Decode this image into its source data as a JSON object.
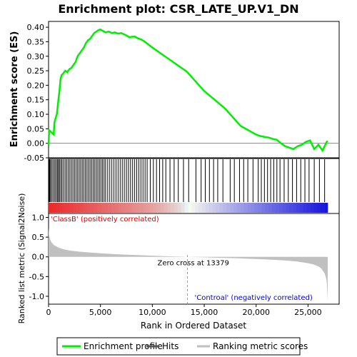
{
  "chart_data": {
    "type": "line",
    "title": "Enrichment plot: CSR_LATE_UP.V1_DN",
    "xlabel": "Rank in Ordered Dataset",
    "xlim": [
      0,
      28000
    ],
    "x_ticks": [
      0,
      5000,
      10000,
      15000,
      20000,
      25000
    ],
    "x_tick_labels": [
      "0",
      "5,000",
      "10,000",
      "15,000",
      "20,000",
      "25,000"
    ],
    "panels": {
      "enrichment": {
        "ylabel": "Enrichment score (ES)",
        "ylim": [
          -0.05,
          0.42
        ],
        "y_ticks": [
          -0.05,
          0.0,
          0.05,
          0.1,
          0.15,
          0.2,
          0.25,
          0.3,
          0.35,
          0.4
        ],
        "y_tick_labels": [
          "-0.05",
          "0.00",
          "0.05",
          "0.10",
          "0.15",
          "0.20",
          "0.25",
          "0.30",
          "0.35",
          "0.40"
        ],
        "series": [
          {
            "name": "Enrichment profile",
            "color": "#00ee00",
            "x": [
              0,
              60,
              500,
              560,
              700,
              800,
              950,
              1050,
              1150,
              1250,
              1400,
              1600,
              1800,
              2000,
              2200,
              2400,
              2600,
              2800,
              3000,
              3200,
              3400,
              3600,
              3800,
              4000,
              4200,
              4400,
              4600,
              4800,
              5000,
              5200,
              5500,
              5800,
              6100,
              6400,
              6700,
              7000,
              7300,
              7600,
              7800,
              8000,
              8300,
              8600,
              8900,
              9200,
              10000,
              11000,
              12000,
              13000,
              13379,
              14000,
              15000,
              16000,
              17000,
              17500,
              18000,
              18500,
              19000,
              19500,
              20000,
              20400,
              20800,
              21200,
              21600,
              22000,
              22400,
              22800,
              23200,
              23600,
              24000,
              24400,
              24800,
              25200,
              25600,
              26000,
              26400,
              26800,
              26900
            ],
            "values": [
              -0.005,
              0.045,
              0.03,
              0.07,
              0.09,
              0.1,
              0.15,
              0.18,
              0.22,
              0.235,
              0.24,
              0.25,
              0.245,
              0.255,
              0.26,
              0.27,
              0.28,
              0.3,
              0.31,
              0.32,
              0.33,
              0.345,
              0.355,
              0.36,
              0.37,
              0.38,
              0.385,
              0.39,
              0.392,
              0.388,
              0.382,
              0.385,
              0.38,
              0.382,
              0.378,
              0.38,
              0.375,
              0.37,
              0.365,
              0.367,
              0.368,
              0.362,
              0.358,
              0.352,
              0.33,
              0.305,
              0.28,
              0.255,
              0.245,
              0.22,
              0.18,
              0.15,
              0.12,
              0.1,
              0.08,
              0.06,
              0.05,
              0.04,
              0.03,
              0.025,
              0.022,
              0.02,
              0.015,
              0.012,
              0.0,
              -0.01,
              -0.015,
              -0.02,
              -0.01,
              -0.005,
              0.005,
              0.01,
              -0.02,
              -0.005,
              -0.025,
              0.005,
              0.008
            ]
          }
        ]
      },
      "hits": {
        "legend_label": "Hits",
        "color": "#000000",
        "ranks": [
          60,
          120,
          200,
          330,
          460,
          600,
          720,
          850,
          950,
          1050,
          1180,
          1300,
          1450,
          1600,
          1750,
          1900,
          2050,
          2200,
          2350,
          2500,
          2650,
          2800,
          2950,
          3100,
          3250,
          3400,
          3550,
          3700,
          3850,
          4000,
          4150,
          4300,
          4450,
          4600,
          4750,
          4900,
          5050,
          5200,
          5350,
          5500,
          5700,
          5900,
          6100,
          6300,
          6500,
          6700,
          6900,
          7100,
          7300,
          7500,
          7700,
          7900,
          8100,
          8300,
          8500,
          8700,
          8900,
          9100,
          9300,
          9500,
          9800,
          10100,
          10400,
          10700,
          11000,
          11300,
          11700,
          12100,
          12500,
          13000,
          13500,
          14200,
          14700,
          15100,
          15500,
          15900,
          16300,
          16800,
          17500,
          17900,
          18400,
          18800,
          19200,
          19700,
          20200,
          20500,
          20800,
          21100,
          21400,
          21700,
          22000,
          22300,
          22700,
          23100,
          23500,
          23900,
          24300,
          24700,
          25100,
          25600,
          26100,
          26600
        ]
      },
      "ranked_metric": {
        "ylabel": "Ranked list metric (Signal2Noise)",
        "ylim": [
          -1.2,
          1.1
        ],
        "y_ticks": [
          1.0,
          0.5,
          0.0,
          -0.5,
          -1.0
        ],
        "y_tick_labels": [
          "1.0",
          "0.5",
          "0.0",
          "-0.5",
          "-1.0"
        ],
        "legend_label": "Ranking metric scores",
        "fill_color": "#c0c0c0",
        "x": [
          0,
          50,
          200,
          500,
          1000,
          1500,
          2000,
          3000,
          4000,
          5000,
          6000,
          7000,
          8000,
          9000,
          10000,
          11000,
          12000,
          13000,
          13379,
          14000,
          15000,
          16000,
          17000,
          18000,
          19000,
          20000,
          21000,
          22000,
          23000,
          24000,
          24500,
          25000,
          25500,
          26000,
          26300,
          26600,
          26800,
          26900
        ],
        "values": [
          0.75,
          0.55,
          0.4,
          0.3,
          0.23,
          0.19,
          0.16,
          0.13,
          0.11,
          0.09,
          0.075,
          0.06,
          0.05,
          0.04,
          0.03,
          0.02,
          0.012,
          0.005,
          0.0,
          -0.005,
          -0.012,
          -0.02,
          -0.028,
          -0.035,
          -0.045,
          -0.055,
          -0.065,
          -0.08,
          -0.095,
          -0.12,
          -0.14,
          -0.16,
          -0.19,
          -0.24,
          -0.3,
          -0.42,
          -0.6,
          -1.1
        ],
        "annotations": [
          {
            "text": "'ClassB' (positively correlated)",
            "color": "#dd0000"
          },
          {
            "text": "Zero cross at 13379",
            "color": "#000000"
          },
          {
            "text": "'Controal' (negatively correlated)",
            "color": "#0000dd"
          }
        ],
        "zero_cross": 13379
      }
    },
    "legend": [
      {
        "label": "Enrichment profile",
        "color": "#00ee00"
      },
      {
        "label": "Hits",
        "color": "#555555"
      },
      {
        "label": "Ranking metric scores",
        "color": "#c0c0c0"
      }
    ],
    "legend_placement": "bottom",
    "grid": false
  }
}
